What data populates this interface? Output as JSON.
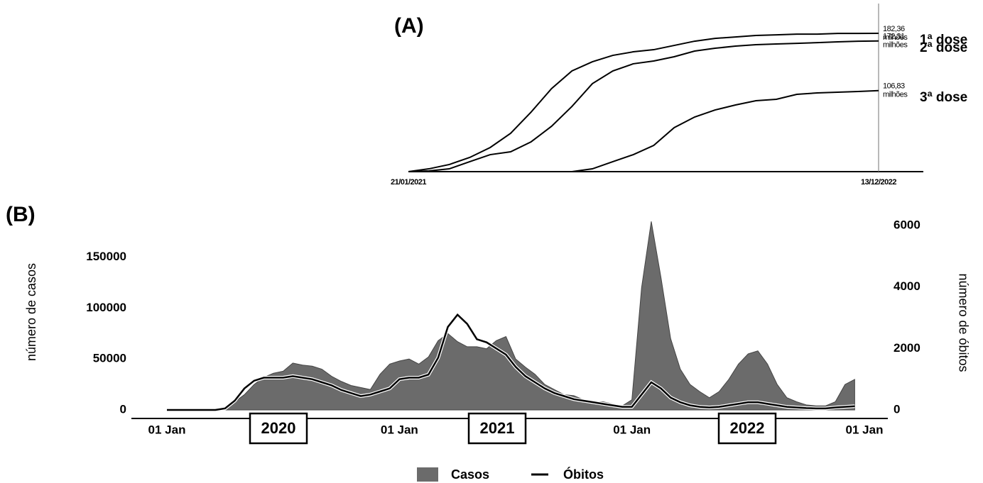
{
  "chart_data": [
    {
      "type": "line",
      "title": "(A)",
      "categories": [
        "21/01/2021",
        null,
        null,
        null,
        null,
        null,
        null,
        null,
        null,
        null,
        null,
        null,
        null,
        null,
        null,
        null,
        null,
        null,
        null,
        null,
        null,
        null,
        null,
        "13/12/2022"
      ],
      "series": [
        {
          "name": "1ª dose",
          "color": "#000000",
          "end_label": [
            "182,36",
            "milhões"
          ],
          "values": [
            0,
            3.7,
            9.4,
            18.7,
            31.8,
            50.5,
            78.5,
            109.4,
            132.8,
            144.9,
            153.3,
            158.0,
            160.8,
            166.4,
            172.0,
            175.7,
            177.6,
            179.5,
            180.4,
            181.3,
            181.3,
            182.2,
            182.2,
            182.36
          ]
        },
        {
          "name": "2ª dose",
          "color": "#000000",
          "end_label": [
            "172,31",
            "milhões"
          ],
          "values": [
            0,
            0.9,
            3.7,
            13.1,
            22.4,
            26.2,
            39.3,
            59.8,
            86.0,
            116.0,
            132.8,
            142.2,
            145.9,
            151.5,
            159.0,
            162.7,
            165.5,
            167.4,
            168.3,
            169.2,
            170.1,
            171.1,
            172.0,
            172.31
          ]
        },
        {
          "name": "3ª dose",
          "color": "#000000",
          "end_label": [
            "106,83",
            "milhões"
          ],
          "values": [
            0,
            0,
            0,
            0,
            0,
            0,
            0,
            0,
            0,
            3.7,
            13.1,
            22.4,
            34.6,
            58.0,
            72.0,
            81.3,
            87.9,
            93.5,
            95.4,
            101.9,
            103.8,
            104.7,
            105.7,
            106.83
          ]
        }
      ]
    },
    {
      "type": "combo",
      "title": "(B)",
      "categories": [
        "01 Jan",
        null,
        null,
        null,
        null,
        null,
        null,
        null,
        null,
        null,
        null,
        null,
        null,
        null,
        null,
        null,
        null,
        null,
        null,
        null,
        null,
        null,
        null,
        null,
        "01 Jan",
        null,
        null,
        null,
        null,
        null,
        null,
        null,
        null,
        null,
        null,
        null,
        null,
        null,
        null,
        null,
        null,
        null,
        null,
        null,
        null,
        null,
        null,
        null,
        "01 Jan",
        null,
        null,
        null,
        null,
        null,
        null,
        null,
        null,
        null,
        null,
        null,
        null,
        null,
        null,
        null,
        null,
        null,
        null,
        null,
        null,
        null,
        null,
        null,
        "01 Jan"
      ],
      "year_labels": [
        "2020",
        "2021",
        "2022"
      ],
      "ylabel": "número de casos",
      "y2label": "número de óbitos",
      "ylim": [
        0,
        190000
      ],
      "yticks": [
        0,
        50000,
        100000,
        150000
      ],
      "y2lim": [
        0,
        6300
      ],
      "y2ticks": [
        0,
        2000,
        4000,
        6000
      ],
      "legend": "bottom",
      "series": [
        {
          "name": "Casos",
          "kind": "area",
          "color": "#6b6b6b",
          "values": [
            0,
            0,
            0,
            0,
            0,
            1000,
            3000,
            8000,
            15000,
            25000,
            32000,
            36000,
            38000,
            46000,
            44000,
            43000,
            40000,
            33000,
            28000,
            24000,
            22000,
            20000,
            35000,
            45000,
            48000,
            50000,
            45000,
            52000,
            68000,
            75000,
            67000,
            62000,
            62000,
            60000,
            68000,
            72000,
            50000,
            42000,
            35000,
            25000,
            20000,
            15000,
            14000,
            10000,
            8000,
            8000,
            6000,
            4000,
            10000,
            120000,
            185000,
            130000,
            70000,
            40000,
            25000,
            18000,
            12000,
            18000,
            30000,
            45000,
            55000,
            58000,
            45000,
            25000,
            12000,
            8000,
            5000,
            4000,
            4000,
            8000,
            25000,
            30000,
            null
          ]
        },
        {
          "name": "Óbitos",
          "kind": "line",
          "axis": "y2",
          "color": "#000000",
          "values": [
            0,
            0,
            0,
            0,
            0,
            0,
            50,
            300,
            700,
            950,
            1050,
            1050,
            1050,
            1100,
            1050,
            1000,
            900,
            800,
            650,
            550,
            450,
            500,
            600,
            700,
            1000,
            1050,
            1050,
            1150,
            1700,
            2700,
            3100,
            2800,
            2300,
            2200,
            2000,
            1800,
            1400,
            1100,
            900,
            700,
            550,
            450,
            350,
            300,
            250,
            200,
            150,
            100,
            100,
            500,
            900,
            700,
            400,
            250,
            150,
            100,
            80,
            100,
            150,
            200,
            250,
            250,
            200,
            150,
            100,
            80,
            60,
            50,
            50,
            80,
            100,
            120,
            null
          ]
        }
      ]
    }
  ]
}
